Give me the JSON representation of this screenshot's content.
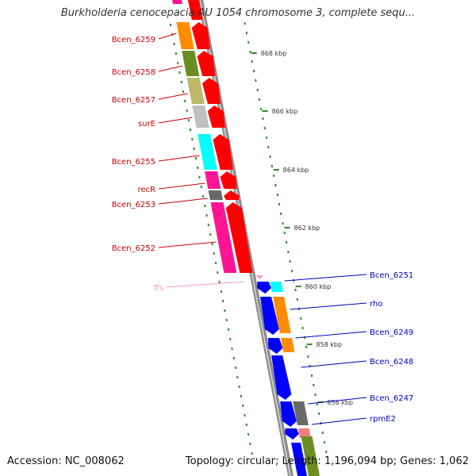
{
  "title": "Burkholderia cenocepacia AU 1054 chromosome 3, complete sequ...",
  "footer": {
    "accession": "Accession: NC_008062",
    "summary": "Topology: circular; Length: 1,196,094 bp; Genes: 1,062"
  },
  "colors": {
    "backbone": "#8c8c8c",
    "tick": "#2e8b2e",
    "label_left": "#cc0000",
    "label_right": "#0000cc",
    "label_rna": "#ff99cc",
    "tick_label": "#333333"
  },
  "scale": [
    "868 kbp",
    "866 kbp",
    "864 kbp",
    "862 kbp",
    "860 kbp",
    "858 kbp",
    "856 kbp"
  ],
  "genes_left_strand": [
    {
      "name": "Bcen_6259",
      "colors": [
        "#ff8c00",
        "#ff0000"
      ]
    },
    {
      "name": "Bcen_6258",
      "colors": [
        "#6b8e23",
        "#ff0000"
      ]
    },
    {
      "name": "Bcen_6257",
      "colors": [
        "#bdb76b",
        "#ff0000"
      ]
    },
    {
      "name": "surE",
      "colors": [
        "#c0c0c0",
        "#ff0000"
      ]
    },
    {
      "name": "Bcen_6255",
      "colors": [
        "#00ffff",
        "#ff0000"
      ]
    },
    {
      "name": "recR",
      "colors": [
        "#ff1493",
        "#ff0000"
      ]
    },
    {
      "name": "Bcen_6253",
      "colors": [
        "#696969",
        "#ff0000"
      ]
    },
    {
      "name": "Bcen_6252",
      "colors": [
        "#ff1493",
        "#ff0000"
      ]
    },
    {
      "name": "ffs",
      "colors": [
        "#ff99cc"
      ]
    }
  ],
  "genes_right_strand": [
    {
      "name": "Bcen_6251",
      "colors": [
        "#0000ff",
        "#00ffff"
      ]
    },
    {
      "name": "rho",
      "colors": [
        "#0000ff",
        "#ff8c00"
      ]
    },
    {
      "name": "Bcen_6249",
      "colors": [
        "#0000ff",
        "#ff8c00"
      ]
    },
    {
      "name": "Bcen_6248",
      "colors": [
        "#0000ff"
      ]
    },
    {
      "name": "Bcen_6247",
      "colors": [
        "#0000ff",
        "#696969"
      ]
    },
    {
      "name": "rpmE2",
      "colors": [
        "#0000ff",
        "#f08080"
      ]
    }
  ]
}
